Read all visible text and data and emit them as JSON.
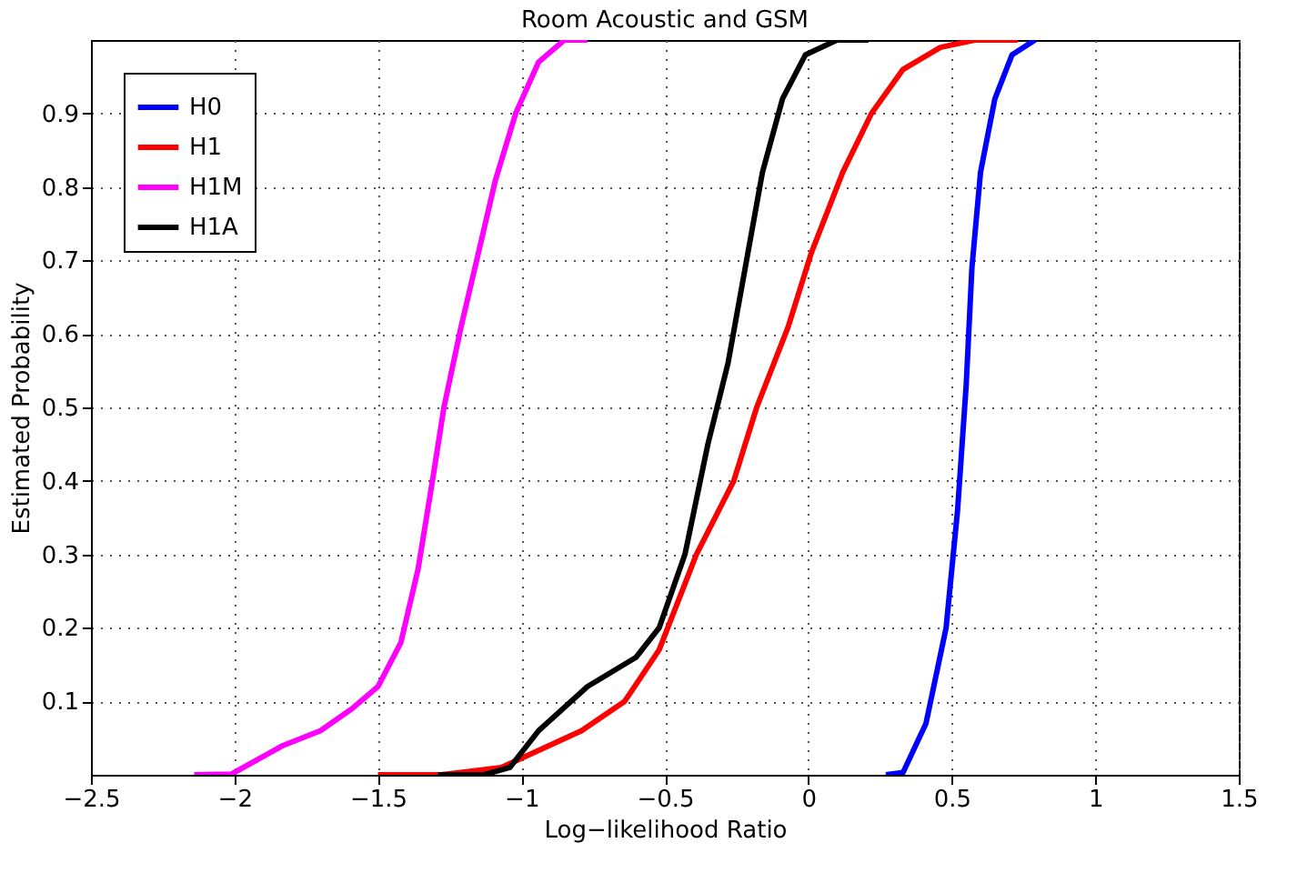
{
  "chart_data": {
    "type": "line",
    "title": "Room Acoustic and GSM",
    "xlabel": "Log−likelihood Ratio",
    "ylabel": "Estimated Probability",
    "xlim": [
      -2.5,
      1.5
    ],
    "xticks": [
      -2.5,
      -2,
      -1.5,
      -1,
      -0.5,
      0,
      0.5,
      1,
      1.5
    ],
    "ylim": [
      0,
      1
    ],
    "yticks": [
      0.1,
      0.2,
      0.3,
      0.4,
      0.5,
      0.6,
      0.7,
      0.8,
      0.9
    ],
    "grid": true,
    "legend": "top left",
    "marker": "none",
    "line_style": "solid",
    "series": [
      {
        "name": "H0",
        "color": "#0000ff",
        "x": [
          0.27,
          0.33,
          0.41,
          0.48,
          0.52,
          0.55,
          0.57,
          0.6,
          0.65,
          0.71,
          0.79
        ],
        "values": [
          0,
          0.003,
          0.07,
          0.2,
          0.36,
          0.53,
          0.69,
          0.82,
          0.92,
          0.98,
          1.0
        ]
      },
      {
        "name": "H1",
        "color": "#ff0000",
        "x": [
          -1.5,
          -1.28,
          -1.07,
          -0.79,
          -0.64,
          -0.52,
          -0.39,
          -0.26,
          -0.18,
          -0.07,
          0.01,
          0.12,
          0.22,
          0.33,
          0.46,
          0.58,
          0.73
        ],
        "values": [
          0,
          0,
          0.01,
          0.06,
          0.1,
          0.17,
          0.3,
          0.4,
          0.5,
          0.61,
          0.71,
          0.82,
          0.9,
          0.96,
          0.99,
          1.0,
          1.0
        ]
      },
      {
        "name": "H1M",
        "color": "#ff00ff",
        "x": [
          -2.14,
          -2.01,
          -1.83,
          -1.7,
          -1.59,
          -1.5,
          -1.42,
          -1.36,
          -1.31,
          -1.27,
          -1.21,
          -1.15,
          -1.09,
          -1.02,
          -0.94,
          -0.85,
          -0.77
        ],
        "values": [
          0,
          0.001,
          0.04,
          0.06,
          0.09,
          0.12,
          0.18,
          0.28,
          0.4,
          0.5,
          0.61,
          0.71,
          0.81,
          0.9,
          0.97,
          1.0,
          1.0
        ]
      },
      {
        "name": "H1A",
        "color": "#000000",
        "x": [
          -1.29,
          -1.13,
          -1.04,
          -0.94,
          -0.77,
          -0.6,
          -0.52,
          -0.43,
          -0.35,
          -0.28,
          -0.22,
          -0.16,
          -0.09,
          -0.01,
          0.1,
          0.21
        ],
        "values": [
          0,
          0,
          0.01,
          0.06,
          0.12,
          0.16,
          0.2,
          0.3,
          0.45,
          0.56,
          0.69,
          0.82,
          0.92,
          0.98,
          1.0,
          1.0
        ]
      }
    ]
  }
}
